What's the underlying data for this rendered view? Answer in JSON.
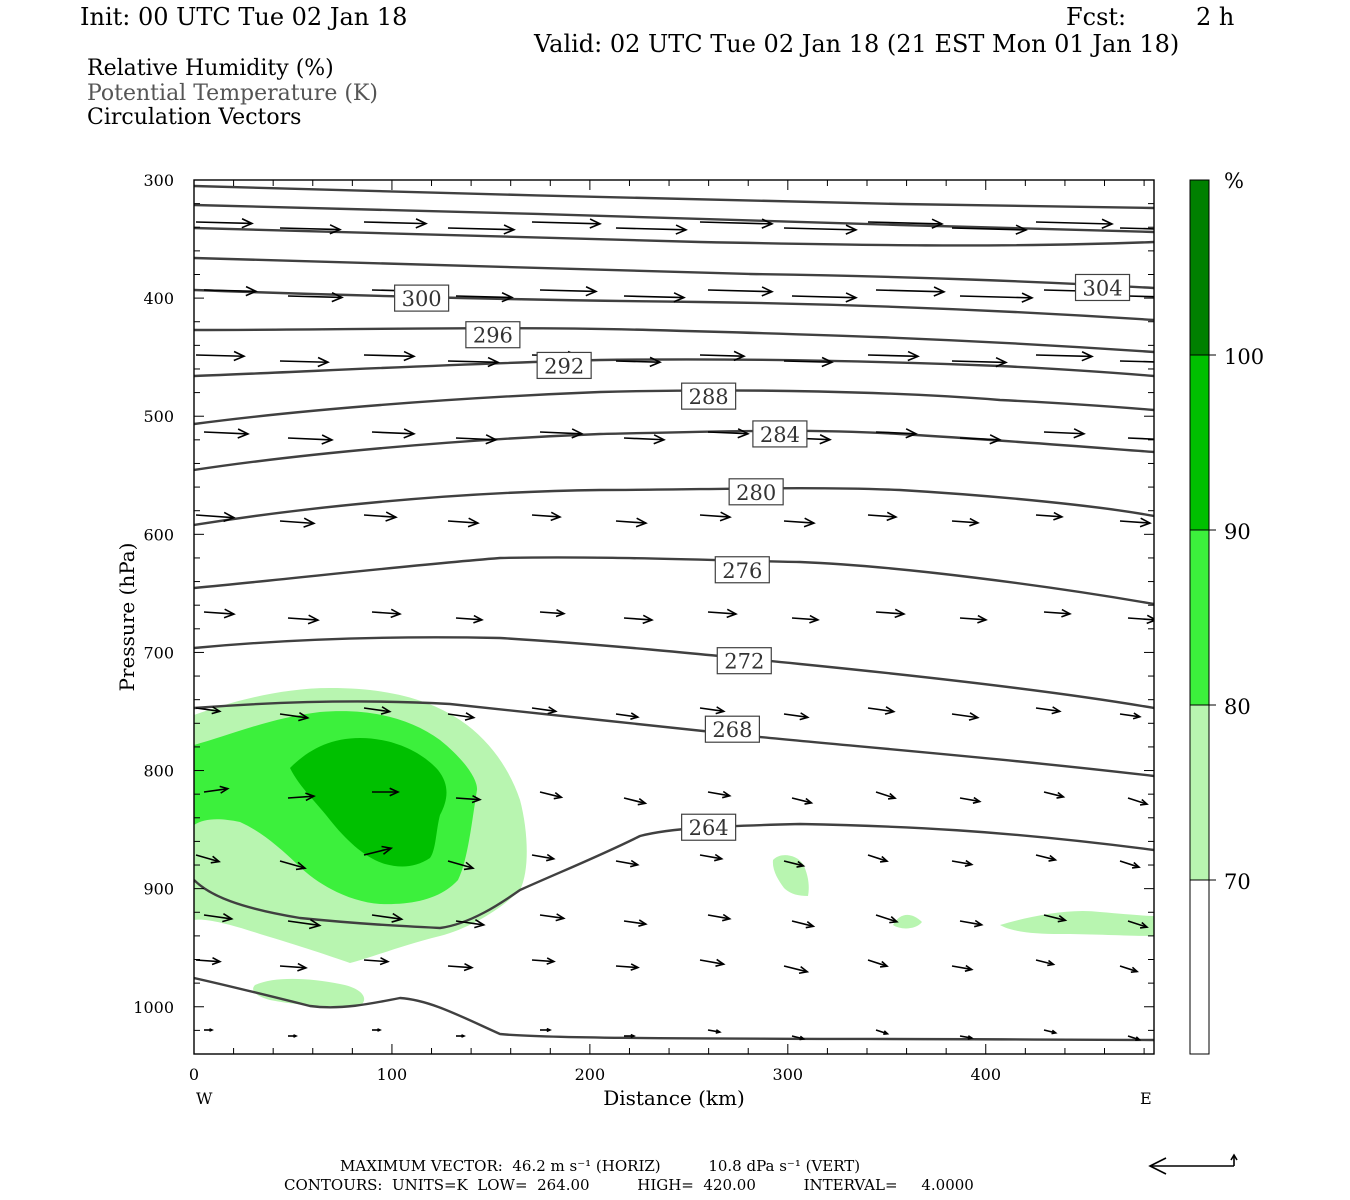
{
  "header": {
    "init": "Init: 00 UTC Tue 02 Jan 18",
    "fcst_label": "Fcst:",
    "fcst_value": "2 h",
    "valid": "Valid: 02 UTC Tue 02 Jan 18 (21 EST Mon 01 Jan 18)"
  },
  "legend": {
    "field1": "Relative Humidity (%)",
    "field2": "Potential Temperature (K)",
    "field3": "Circulation Vectors"
  },
  "colors": {
    "rh70": "#b8f5b0",
    "rh80": "#3cf03c",
    "rh90": "#00c000",
    "rh100": "#008000",
    "theta": "#404040"
  },
  "chart_data": {
    "type": "cross-section",
    "xlabel": "Distance (km)",
    "ylabel": "Pressure (hPa)",
    "xlim": [
      0,
      485
    ],
    "ylim": [
      1040,
      300
    ],
    "x_ticks": [
      "0",
      "100",
      "200",
      "300",
      "400"
    ],
    "y_ticks": [
      "300",
      "400",
      "500",
      "600",
      "700",
      "800",
      "900",
      "1000"
    ],
    "x_end_left": "W",
    "x_end_right": "E",
    "colorbar": {
      "unit": "%",
      "levels": [
        "70",
        "80",
        "90",
        "100"
      ]
    },
    "theta_contour_labels": [
      {
        "value": "264",
        "x": 260,
        "p": 848
      },
      {
        "value": "268",
        "x": 272,
        "p": 765
      },
      {
        "value": "272",
        "x": 278,
        "p": 707
      },
      {
        "value": "276",
        "x": 277,
        "p": 630
      },
      {
        "value": "280",
        "x": 284,
        "p": 564
      },
      {
        "value": "284",
        "x": 296,
        "p": 515
      },
      {
        "value": "288",
        "x": 260,
        "p": 483
      },
      {
        "value": "292",
        "x": 187,
        "p": 457
      },
      {
        "value": "296",
        "x": 151,
        "p": 431
      },
      {
        "value": "300",
        "x": 115,
        "p": 400
      },
      {
        "value": "304",
        "x": 459,
        "p": 391
      }
    ]
  },
  "footer": {
    "max_vector": "MAXIMUM VECTOR:  46.2 m s⁻¹ (HORIZ)          10.8 dPa s⁻¹ (VERT)",
    "contours": "CONTOURS:  UNITS=K  LOW=  264.00          HIGH=  420.00          INTERVAL=     4.0000"
  }
}
